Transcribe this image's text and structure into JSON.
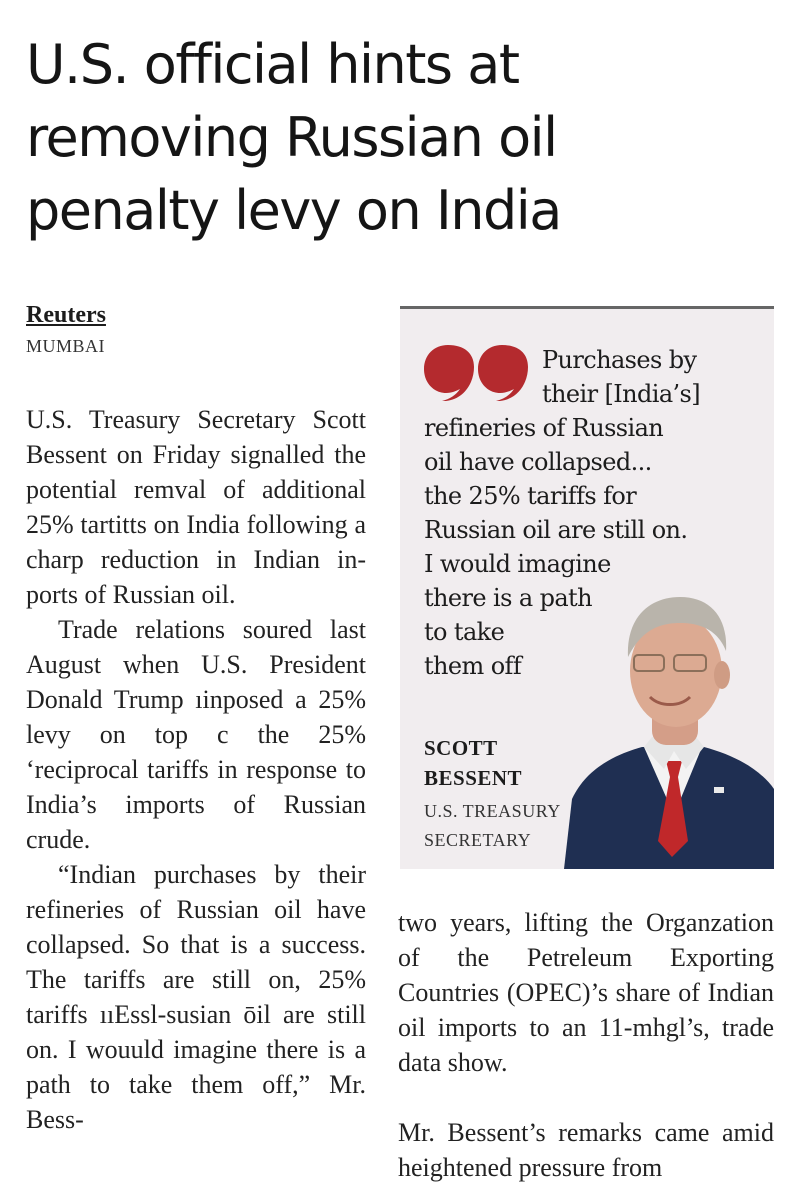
{
  "article": {
    "headline_lines": [
      "U.S. official hints at",
      "removing Russian oil",
      "penalty levy on India"
    ],
    "source": "Reuters",
    "dateline": "MUMBAI",
    "col1_paragraphs": [
      "U.S. Treasury Secretary Scott Bessent on Friday si­gnalled the potential rem­val of additional 25% tar­titts on India following a ch­arp reduction in Indian in­ports of Russian oil.",
      "Trade relations soured last August when U.S. Pre­sident Donald Trump ıin­posed a 25% levy on top c the 25% ‘reciprocal tariffs in response to India’s im­ports of Russian crude.",
      "“Indian purchases by their refineries of Russian oil have collapsed. So that is a success. The tariffs are still on, 25% tariffs ııEssl-susian ōil are still on. I wou­uld imagine there is a path to take them off,” Mr. Bess-"
    ],
    "col2_paragraphs": [
      "two years, lifting the Organ­zation of the Petreleum Exp­orting Countries (OPEC)’s share of Indian oil imports to an 11-m­hgl’s, trade data show.",
      "Mr. Bessent’s remarks came amid heightened pressure from"
    ]
  },
  "pull_quote": {
    "lines": [
      "Purchases by",
      "their [India’s]",
      "refineries of Russian",
      "oil have collapsed...",
      "the 25% tariffs for",
      "Russian oil are still on.",
      "I would imagine",
      "there is a path",
      "to take",
      "them off"
    ],
    "speaker_name_lines": [
      "SCOTT",
      "BESSENT"
    ],
    "speaker_title_lines": [
      "U.S. TREASURY",
      "SECRETARY"
    ]
  },
  "colors": {
    "quote_mark": "#b42a2e",
    "quote_box_bg": "#f1edef",
    "tie": "#c0282a",
    "suit": "#1f2f52"
  },
  "icons": {
    "quote_mark": "opening-quote-icon",
    "portrait": "speaker-portrait"
  }
}
